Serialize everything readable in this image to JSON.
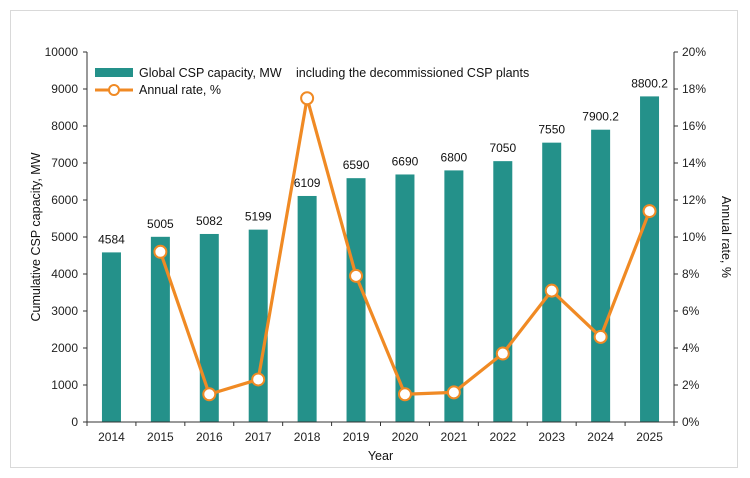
{
  "chart_data": {
    "type": "bar",
    "title": "",
    "xlabel": "Year",
    "ylabel": "Cumulative CSP capacity, MW",
    "y2label": "Annual rate, %",
    "ylim": [
      0,
      10000
    ],
    "y2lim": [
      0,
      20
    ],
    "yticks": [
      0,
      1000,
      2000,
      3000,
      4000,
      5000,
      6000,
      7000,
      8000,
      9000,
      10000
    ],
    "y2ticks": [
      "0%",
      "2%",
      "4%",
      "6%",
      "8%",
      "10%",
      "12%",
      "14%",
      "16%",
      "18%",
      "20%"
    ],
    "categories": [
      "2014",
      "2015",
      "2016",
      "2017",
      "2018",
      "2019",
      "2020",
      "2021",
      "2022",
      "2023",
      "2024",
      "2025"
    ],
    "series": [
      {
        "name": "Global CSP capacity, MW",
        "kind": "bar",
        "axis": "left",
        "values": [
          4584,
          5005,
          5082,
          5199,
          6109,
          6590,
          6690,
          6800,
          7050,
          7550,
          7900.2,
          8800.2
        ],
        "labels": [
          "4584",
          "5005",
          "5082",
          "5199",
          "6109",
          "6590",
          "6690",
          "6800",
          "7050",
          "7550",
          "7900.2",
          "8800.2"
        ],
        "color": "#24918a"
      },
      {
        "name": "Annual rate, %",
        "kind": "line",
        "axis": "right",
        "values": [
          null,
          9.2,
          1.5,
          2.3,
          17.5,
          7.9,
          1.5,
          1.6,
          3.7,
          7.1,
          4.6,
          11.4
        ],
        "color": "#f08a24"
      }
    ],
    "legend_note": "including the decommissioned CSP plants",
    "legend_position": "top-left",
    "grid": false
  }
}
